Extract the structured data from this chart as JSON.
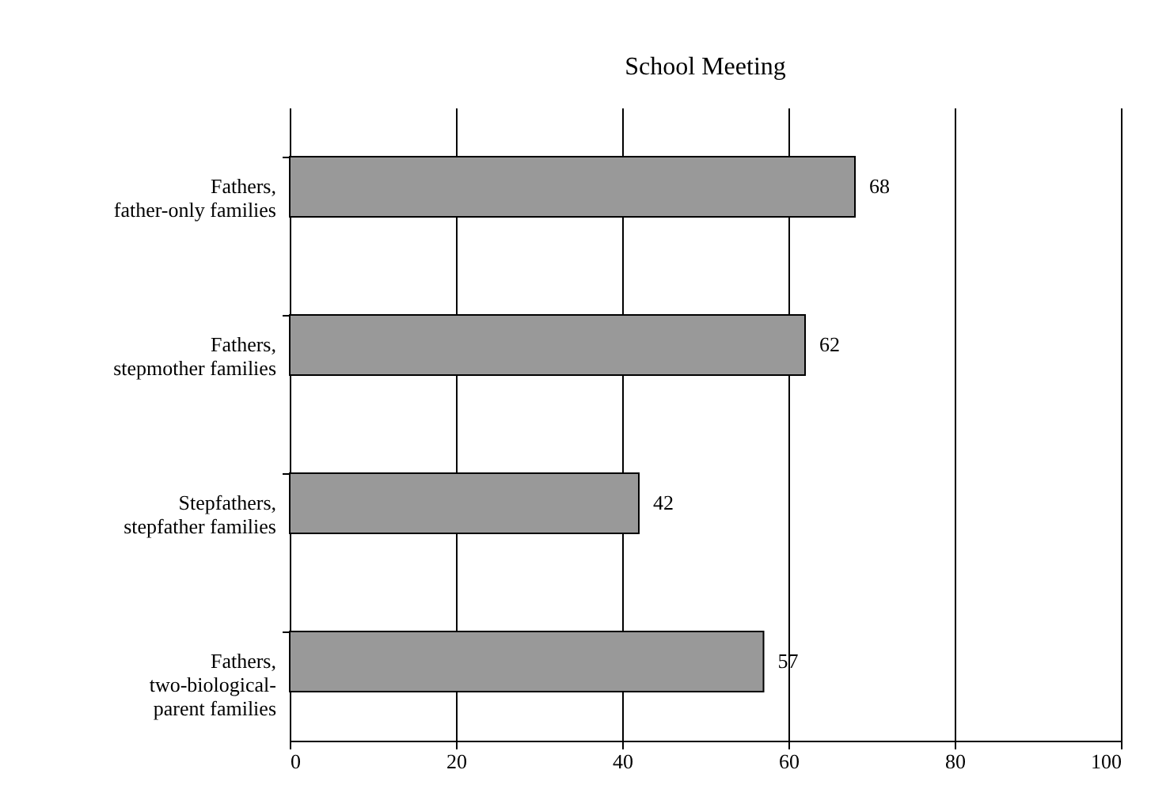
{
  "chart_data": {
    "type": "bar",
    "orientation": "horizontal",
    "title": "School Meeting",
    "categories": [
      "Fathers, father-only families",
      "Fathers, stepmother families",
      "Stepfathers, stepfather families",
      "Fathers, two-biological-parent families"
    ],
    "values": [
      68,
      62,
      42,
      57
    ],
    "color": "#999999",
    "xlim": [
      0,
      100
    ],
    "xticks": [
      0,
      20,
      40,
      60,
      80,
      100
    ],
    "grid": "x",
    "data_labels": true
  }
}
